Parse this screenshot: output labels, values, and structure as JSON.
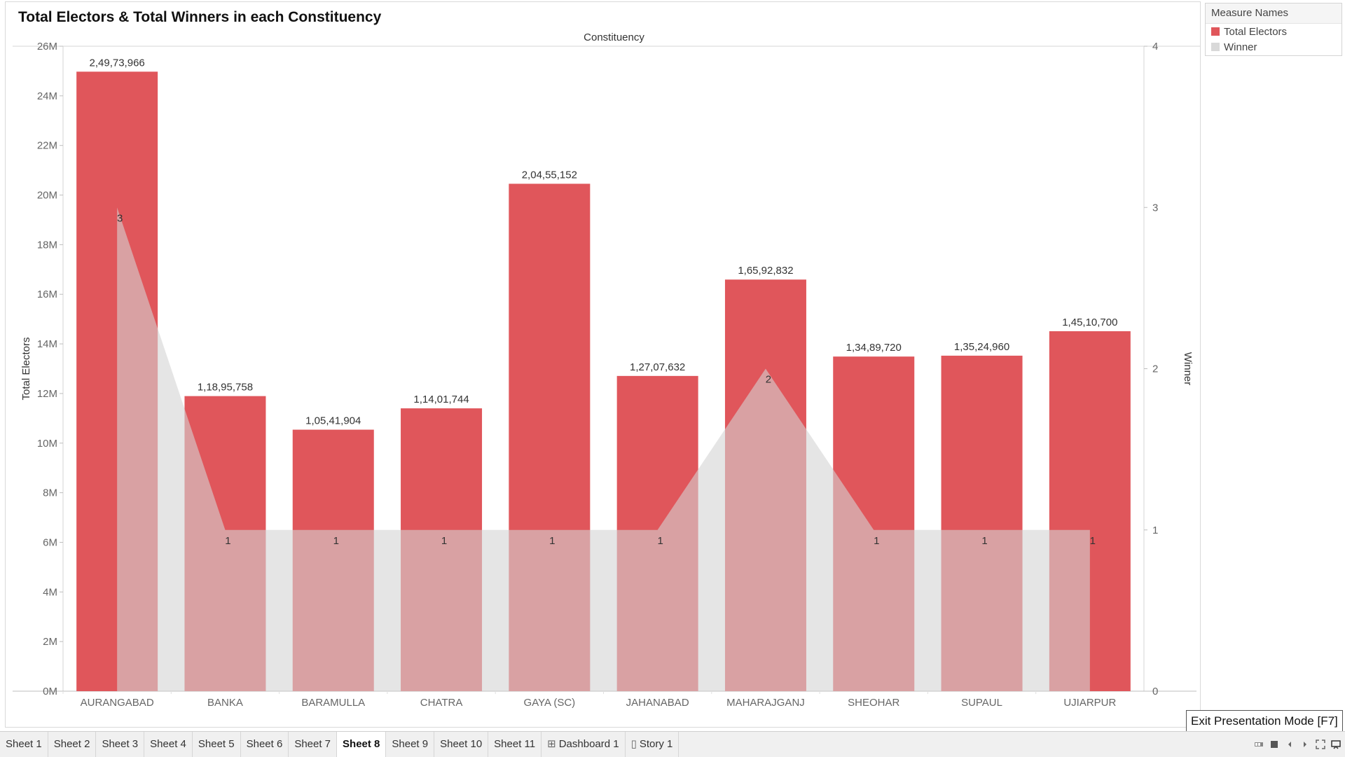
{
  "title": "Total Electors & Total Winners in each Constituency",
  "chart_data": {
    "type": "bar",
    "column_header": "Constituency",
    "categories": [
      "AURANGABAD",
      "BANKA",
      "BARAMULLA",
      "CHATRA",
      "GAYA (SC)",
      "JAHANABAD",
      "MAHARAJGANJ",
      "SHEOHAR",
      "SUPAUL",
      "UJIARPUR"
    ],
    "series": [
      {
        "name": "Total Electors",
        "mark": "bar",
        "axis": "left",
        "color": "#e0565b",
        "values": [
          24973966,
          11895758,
          10541904,
          11401744,
          20455152,
          12707632,
          16592832,
          13489720,
          13524960,
          14510700
        ],
        "labels": [
          "2,49,73,966",
          "1,18,95,758",
          "1,05,41,904",
          "1,14,01,744",
          "2,04,55,152",
          "1,27,07,632",
          "1,65,92,832",
          "1,34,89,720",
          "1,35,24,960",
          "1,45,10,700"
        ]
      },
      {
        "name": "Winner",
        "mark": "area",
        "axis": "right",
        "color": "#d3d3d3",
        "opacity": 0.6,
        "values": [
          3,
          1,
          1,
          1,
          1,
          1,
          2,
          1,
          1,
          1
        ],
        "labels": [
          "3",
          "1",
          "1",
          "1",
          "1",
          "1",
          "2",
          "1",
          "1",
          "1"
        ]
      }
    ],
    "y_left": {
      "label": "Total Electors",
      "ylim": [
        0,
        26000000
      ],
      "ticks": [
        0,
        2000000,
        4000000,
        6000000,
        8000000,
        10000000,
        12000000,
        14000000,
        16000000,
        18000000,
        20000000,
        22000000,
        24000000,
        26000000
      ],
      "tick_labels": [
        "0M",
        "2M",
        "4M",
        "6M",
        "8M",
        "10M",
        "12M",
        "14M",
        "16M",
        "18M",
        "20M",
        "22M",
        "24M",
        "26M"
      ]
    },
    "y_right": {
      "label": "Winner",
      "ylim": [
        0,
        4
      ],
      "ticks": [
        0,
        1,
        2,
        3,
        4
      ],
      "tick_labels": [
        "0",
        "1",
        "2",
        "3",
        "4"
      ]
    },
    "grid": false,
    "legend_position": "top-right"
  },
  "legend": {
    "title": "Measure Names",
    "items": [
      {
        "label": "Total Electors",
        "color": "#e0565b"
      },
      {
        "label": "Winner",
        "color": "#d9d9d9"
      }
    ]
  },
  "tooltip": "Exit Presentation Mode [F7]",
  "tabs": [
    {
      "label": "Sheet 1",
      "active": false,
      "icon": ""
    },
    {
      "label": "Sheet 2",
      "active": false,
      "icon": ""
    },
    {
      "label": "Sheet 3",
      "active": false,
      "icon": ""
    },
    {
      "label": "Sheet 4",
      "active": false,
      "icon": ""
    },
    {
      "label": "Sheet 5",
      "active": false,
      "icon": ""
    },
    {
      "label": "Sheet 6",
      "active": false,
      "icon": ""
    },
    {
      "label": "Sheet 7",
      "active": false,
      "icon": ""
    },
    {
      "label": "Sheet 8",
      "active": true,
      "icon": ""
    },
    {
      "label": "Sheet 9",
      "active": false,
      "icon": ""
    },
    {
      "label": "Sheet 10",
      "active": false,
      "icon": ""
    },
    {
      "label": "Sheet 11",
      "active": false,
      "icon": ""
    },
    {
      "label": "Dashboard 1",
      "active": false,
      "icon": "dashboard-icon"
    },
    {
      "label": "Story 1",
      "active": false,
      "icon": "story-icon"
    }
  ],
  "controls": [
    "show-filmstrip-icon",
    "show-tabs-icon",
    "previous-sheet-icon",
    "next-sheet-icon",
    "fullscreen-icon",
    "presentation-mode-icon"
  ]
}
